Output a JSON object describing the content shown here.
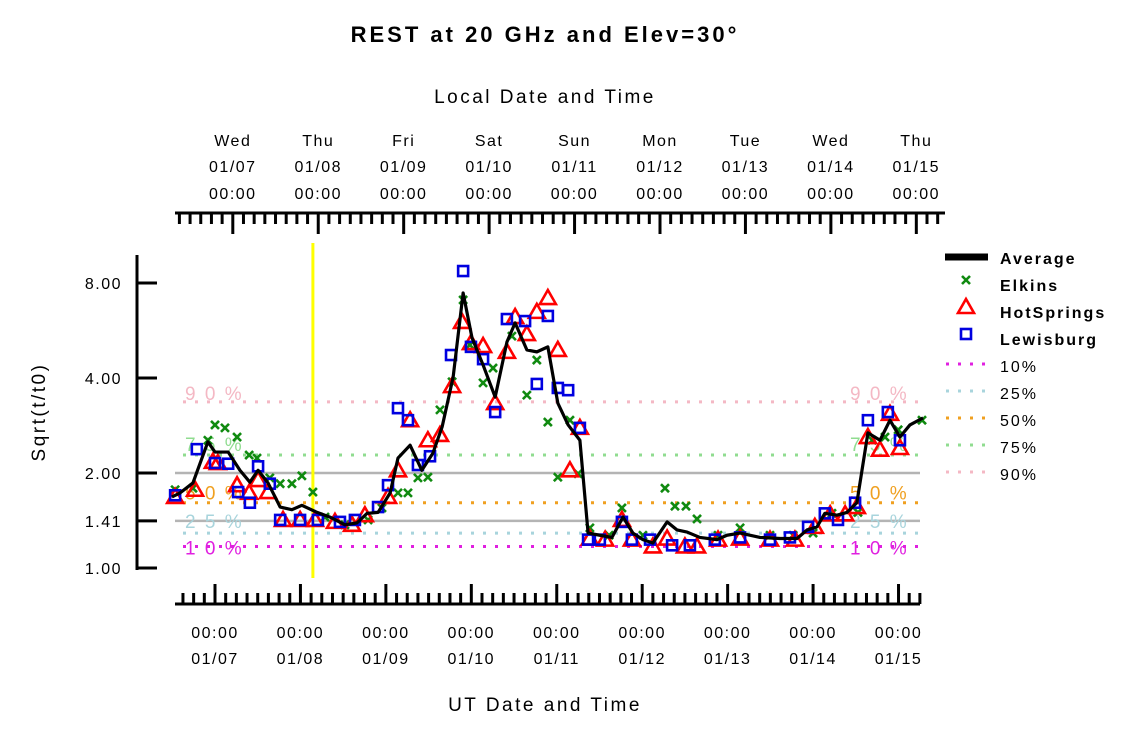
{
  "chart_data": {
    "type": "scatter",
    "title": "REST at 20 GHz and Elev=30°",
    "top_axis_title": "Local Date and Time",
    "xlabel": "UT Date and Time",
    "ylabel": "Sqrt(t/t0)",
    "x_units": "hours since 01/07 00:00 UT",
    "xlim": [
      -11.2,
      198.9
    ],
    "y_scale": "log2",
    "ylim": [
      1.0,
      10.0
    ],
    "y_ticks": [
      {
        "value": 1.0,
        "label": "1.00"
      },
      {
        "value": 1.41,
        "label": "1.41"
      },
      {
        "value": 2.0,
        "label": "2.00"
      },
      {
        "value": 4.0,
        "label": "4.00"
      },
      {
        "value": 8.0,
        "label": "8.00"
      }
    ],
    "gridlines_at": [
      1.41,
      2.0
    ],
    "top_ticks": [
      {
        "day": "Wed",
        "date": "01/07",
        "time": "00:00",
        "ut_hour": 5
      },
      {
        "day": "Thu",
        "date": "01/08",
        "time": "00:00",
        "ut_hour": 29
      },
      {
        "day": "Fri",
        "date": "01/09",
        "time": "00:00",
        "ut_hour": 53
      },
      {
        "day": "Sat",
        "date": "01/10",
        "time": "00:00",
        "ut_hour": 77
      },
      {
        "day": "Sun",
        "date": "01/11",
        "time": "00:00",
        "ut_hour": 101
      },
      {
        "day": "Mon",
        "date": "01/12",
        "time": "00:00",
        "ut_hour": 125
      },
      {
        "day": "Tue",
        "date": "01/13",
        "time": "00:00",
        "ut_hour": 149
      },
      {
        "day": "Wed",
        "date": "01/14",
        "time": "00:00",
        "ut_hour": 173
      },
      {
        "day": "Thu",
        "date": "01/15",
        "time": "00:00",
        "ut_hour": 197
      }
    ],
    "bottom_ticks": [
      {
        "time": "00:00",
        "date": "01/07",
        "ut_hour": 0
      },
      {
        "time": "00:00",
        "date": "01/08",
        "ut_hour": 24
      },
      {
        "time": "00:00",
        "date": "01/09",
        "ut_hour": 48
      },
      {
        "time": "00:00",
        "date": "01/10",
        "ut_hour": 72
      },
      {
        "time": "00:00",
        "date": "01/11",
        "ut_hour": 96
      },
      {
        "time": "00:00",
        "date": "01/12",
        "ut_hour": 120
      },
      {
        "time": "00:00",
        "date": "01/13",
        "ut_hour": 144
      },
      {
        "time": "00:00",
        "date": "01/14",
        "ut_hour": 168
      },
      {
        "time": "00:00",
        "date": "01/15",
        "ut_hour": 192
      }
    ],
    "current_time_marker": {
      "ut_hour": 27.5,
      "color": "#ffff00"
    },
    "percentiles": [
      {
        "name": "10%",
        "label": "1 0 %",
        "value": 1.17,
        "color": "#e020e0"
      },
      {
        "name": "25%",
        "label": "2 5 %",
        "value": 1.29,
        "color": "#a8d4dc"
      },
      {
        "name": "50%",
        "label": "5 0 %",
        "value": 1.61,
        "color": "#f0a020"
      },
      {
        "name": "75%",
        "label": "7 5 %",
        "value": 2.28,
        "color": "#90dc90"
      },
      {
        "name": "90%",
        "label": "9 0 %",
        "value": 3.36,
        "color": "#f4b8c4"
      }
    ],
    "legend_position": "right",
    "series": [
      {
        "name": "Average",
        "kind": "line",
        "color": "#000000",
        "points": [
          [
            -12.1,
            1.68
          ],
          [
            -9.8,
            1.73
          ],
          [
            -6.2,
            1.86
          ],
          [
            -2,
            2.51
          ],
          [
            0,
            2.33
          ],
          [
            3.7,
            2.33
          ],
          [
            7,
            2.04
          ],
          [
            9.8,
            1.87
          ],
          [
            12.1,
            2.04
          ],
          [
            14.9,
            1.86
          ],
          [
            18.3,
            1.56
          ],
          [
            21.6,
            1.53
          ],
          [
            24.4,
            1.58
          ],
          [
            28.7,
            1.5
          ],
          [
            32.3,
            1.45
          ],
          [
            36.5,
            1.37
          ],
          [
            39.9,
            1.39
          ],
          [
            42.7,
            1.49
          ],
          [
            45.8,
            1.5
          ],
          [
            49.2,
            1.73
          ],
          [
            51.4,
            2.23
          ],
          [
            54.8,
            2.45
          ],
          [
            58.1,
            2.04
          ],
          [
            61.2,
            2.31
          ],
          [
            63.8,
            2.8
          ],
          [
            66.9,
            4.03
          ],
          [
            69.7,
            7.44
          ],
          [
            72.2,
            5.36
          ],
          [
            75.3,
            4.4
          ],
          [
            78.7,
            3.48
          ],
          [
            82,
            5.2
          ],
          [
            84.3,
            5.98
          ],
          [
            87.6,
            4.91
          ],
          [
            90.4,
            4.84
          ],
          [
            93.5,
            5.02
          ],
          [
            96.3,
            3.33
          ],
          [
            99.2,
            2.84
          ],
          [
            102.5,
            2.54
          ],
          [
            104.8,
            1.29
          ],
          [
            108.1,
            1.27
          ],
          [
            111.5,
            1.25
          ],
          [
            114.6,
            1.45
          ],
          [
            117.4,
            1.29
          ],
          [
            120.2,
            1.23
          ],
          [
            123,
            1.2
          ],
          [
            127,
            1.4
          ],
          [
            129.8,
            1.32
          ],
          [
            132.6,
            1.3
          ],
          [
            136.2,
            1.25
          ],
          [
            141,
            1.23
          ],
          [
            143.8,
            1.27
          ],
          [
            147.5,
            1.29
          ],
          [
            153.1,
            1.25
          ],
          [
            158.7,
            1.24
          ],
          [
            163.5,
            1.24
          ],
          [
            166.3,
            1.32
          ],
          [
            169.1,
            1.35
          ],
          [
            171.3,
            1.49
          ],
          [
            174.7,
            1.47
          ],
          [
            177.5,
            1.5
          ],
          [
            180.3,
            1.61
          ],
          [
            183.4,
            2.68
          ],
          [
            186.8,
            2.54
          ],
          [
            189.6,
            2.94
          ],
          [
            192.4,
            2.6
          ],
          [
            195.2,
            2.84
          ],
          [
            198.9,
            2.99
          ]
        ]
      },
      {
        "name": "Elkins",
        "kind": "x",
        "color": "#108a10",
        "points": [
          [
            -11.2,
            1.77
          ],
          [
            -6.2,
            1.79
          ],
          [
            -2,
            2.54
          ],
          [
            0,
            2.84
          ],
          [
            2.8,
            2.78
          ],
          [
            6.2,
            2.6
          ],
          [
            9.6,
            2.28
          ],
          [
            11.8,
            2.23
          ],
          [
            15.4,
            1.93
          ],
          [
            18.3,
            1.85
          ],
          [
            21.6,
            1.85
          ],
          [
            24.4,
            1.96
          ],
          [
            27.5,
            1.74
          ],
          [
            30.9,
            1.45
          ],
          [
            36.5,
            1.37
          ],
          [
            43,
            1.42
          ],
          [
            46.9,
            1.55
          ],
          [
            51.4,
            1.73
          ],
          [
            54.2,
            1.73
          ],
          [
            57,
            1.93
          ],
          [
            59.8,
            1.94
          ],
          [
            63.2,
            3.17
          ],
          [
            66.6,
            3.89
          ],
          [
            69.7,
            7.07
          ],
          [
            71.6,
            5.09
          ],
          [
            75.3,
            3.86
          ],
          [
            78.1,
            4.3
          ],
          [
            83.4,
            5.43
          ],
          [
            87.6,
            3.53
          ],
          [
            90.4,
            4.56
          ],
          [
            93.5,
            2.9
          ],
          [
            96.3,
            1.94
          ],
          [
            99.7,
            2.94
          ],
          [
            102,
            1.99
          ],
          [
            105.3,
            1.34
          ],
          [
            110.7,
            1.27
          ],
          [
            114.3,
            1.55
          ],
          [
            120.2,
            1.27
          ],
          [
            126.4,
            1.79
          ],
          [
            129.2,
            1.57
          ],
          [
            132.3,
            1.57
          ],
          [
            135.4,
            1.43
          ],
          [
            141.3,
            1.27
          ],
          [
            147.5,
            1.34
          ],
          [
            155.9,
            1.27
          ],
          [
            162.4,
            1.27
          ],
          [
            168,
            1.29
          ],
          [
            173.3,
            1.49
          ],
          [
            180.6,
            1.5
          ],
          [
            184.6,
            2.54
          ],
          [
            188.2,
            2.6
          ],
          [
            191.9,
            2.74
          ],
          [
            198.6,
            2.94
          ]
        ]
      },
      {
        "name": "HotSprings",
        "kind": "triangle",
        "color": "#ff0000",
        "points": [
          [
            -11.2,
            1.68
          ],
          [
            -5.6,
            1.77
          ],
          [
            -0.6,
            2.17
          ],
          [
            0.8,
            2.15
          ],
          [
            6.2,
            1.83
          ],
          [
            9.6,
            1.73
          ],
          [
            12.1,
            1.9
          ],
          [
            14.9,
            1.74
          ],
          [
            19.1,
            1.42
          ],
          [
            23.9,
            1.42
          ],
          [
            28.1,
            1.42
          ],
          [
            33.7,
            1.4
          ],
          [
            38.5,
            1.37
          ],
          [
            42.1,
            1.47
          ],
          [
            48.6,
            1.68
          ],
          [
            51.4,
            2.04
          ],
          [
            54.8,
            2.94
          ],
          [
            59.8,
            2.54
          ],
          [
            63.2,
            2.64
          ],
          [
            66.6,
            3.77
          ],
          [
            69.4,
            6.02
          ],
          [
            71.9,
            5.16
          ],
          [
            75.3,
            5.05
          ],
          [
            78.7,
            3.33
          ],
          [
            82,
            4.84
          ],
          [
            84.3,
            6.24
          ],
          [
            87.6,
            5.51
          ],
          [
            90.4,
            6.48
          ],
          [
            93.5,
            7.17
          ],
          [
            96.3,
            4.91
          ],
          [
            99.7,
            2.04
          ],
          [
            102.5,
            2.78
          ],
          [
            105.3,
            1.24
          ],
          [
            109.6,
            1.23
          ],
          [
            114.3,
            1.42
          ],
          [
            117.1,
            1.23
          ],
          [
            123,
            1.17
          ],
          [
            127,
            1.24
          ],
          [
            132,
            1.17
          ],
          [
            135.4,
            1.17
          ],
          [
            141.3,
            1.23
          ],
          [
            147.5,
            1.24
          ],
          [
            155.9,
            1.23
          ],
          [
            162.9,
            1.23
          ],
          [
            168.5,
            1.35
          ],
          [
            172.8,
            1.48
          ],
          [
            177,
            1.48
          ],
          [
            180.3,
            1.56
          ],
          [
            183.4,
            2.6
          ],
          [
            186.8,
            2.37
          ],
          [
            189.6,
            3.08
          ],
          [
            192.4,
            2.4
          ]
        ]
      },
      {
        "name": "Lewisburg",
        "kind": "square",
        "color": "#0000e0",
        "points": [
          [
            -11.2,
            1.7
          ],
          [
            -5.1,
            2.38
          ],
          [
            0,
            2.15
          ],
          [
            3.7,
            2.14
          ],
          [
            6.5,
            1.74
          ],
          [
            9.8,
            1.61
          ],
          [
            12.1,
            2.1
          ],
          [
            15.4,
            1.85
          ],
          [
            18.3,
            1.42
          ],
          [
            23.9,
            1.42
          ],
          [
            28.9,
            1.42
          ],
          [
            35.1,
            1.4
          ],
          [
            39.3,
            1.42
          ],
          [
            45.8,
            1.56
          ],
          [
            48.6,
            1.83
          ],
          [
            51.4,
            3.21
          ],
          [
            54.2,
            2.94
          ],
          [
            57,
            2.12
          ],
          [
            60.4,
            2.26
          ],
          [
            66.3,
            4.73
          ],
          [
            69.7,
            8.73
          ],
          [
            71.9,
            5.02
          ],
          [
            75.3,
            4.59
          ],
          [
            78.7,
            3.12
          ],
          [
            82,
            6.15
          ],
          [
            87.1,
            6.06
          ],
          [
            90.4,
            3.83
          ],
          [
            93.5,
            6.29
          ],
          [
            96.3,
            3.72
          ],
          [
            99.2,
            3.66
          ],
          [
            102.5,
            2.78
          ],
          [
            104.8,
            1.23
          ],
          [
            108.1,
            1.23
          ],
          [
            114.3,
            1.4
          ],
          [
            117.1,
            1.23
          ],
          [
            122.2,
            1.23
          ],
          [
            128.4,
            1.18
          ],
          [
            133.4,
            1.18
          ],
          [
            140.4,
            1.23
          ],
          [
            147.5,
            1.25
          ],
          [
            155.9,
            1.23
          ],
          [
            161.5,
            1.25
          ],
          [
            166.6,
            1.35
          ],
          [
            171.3,
            1.49
          ],
          [
            175,
            1.42
          ],
          [
            179.8,
            1.61
          ],
          [
            183.4,
            2.94
          ],
          [
            189,
            3.12
          ],
          [
            192.4,
            2.54
          ]
        ]
      }
    ]
  }
}
